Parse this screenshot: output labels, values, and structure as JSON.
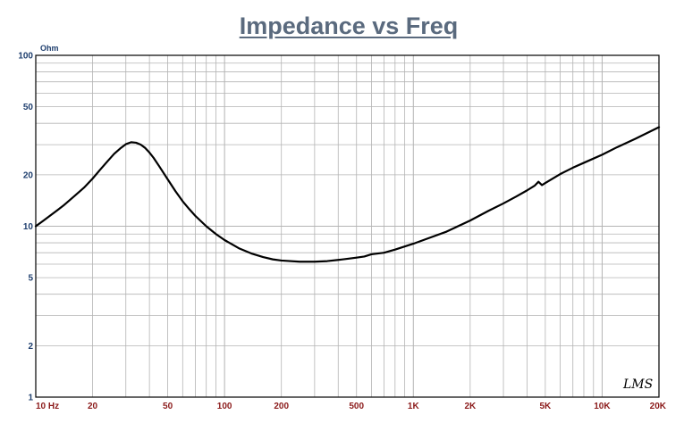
{
  "chart_data": {
    "type": "line",
    "title": "Impedance vs Freq",
    "ylabel": "Ohm",
    "xlabel": "",
    "x_scale": "log",
    "y_scale": "log",
    "xlim": [
      10,
      20000
    ],
    "ylim": [
      1,
      100
    ],
    "x_tick_labels": [
      {
        "value": 10,
        "label": "10 Hz"
      },
      {
        "value": 20,
        "label": "20"
      },
      {
        "value": 50,
        "label": "50"
      },
      {
        "value": 100,
        "label": "100"
      },
      {
        "value": 200,
        "label": "200"
      },
      {
        "value": 500,
        "label": "500"
      },
      {
        "value": 1000,
        "label": "1K"
      },
      {
        "value": 2000,
        "label": "2K"
      },
      {
        "value": 5000,
        "label": "5K"
      },
      {
        "value": 10000,
        "label": "10K"
      },
      {
        "value": 20000,
        "label": "20K"
      }
    ],
    "y_tick_labels": [
      {
        "value": 100,
        "label": "100"
      },
      {
        "value": 50,
        "label": "50"
      },
      {
        "value": 20,
        "label": "20"
      },
      {
        "value": 10,
        "label": "10"
      },
      {
        "value": 5,
        "label": "5"
      },
      {
        "value": 2,
        "label": "2"
      },
      {
        "value": 1,
        "label": "1"
      }
    ],
    "grid": true,
    "legend": "none",
    "series": [
      {
        "x": [
          10,
          11,
          12,
          13,
          14,
          15,
          16,
          18,
          20,
          22,
          24,
          26,
          28,
          30,
          32,
          34,
          36,
          38,
          40,
          42,
          45,
          50,
          55,
          60,
          65,
          70,
          80,
          90,
          100,
          120,
          140,
          160,
          180,
          200,
          250,
          300,
          350,
          400,
          450,
          500,
          550,
          600,
          700,
          800,
          1000,
          1200,
          1500,
          2000,
          2500,
          3000,
          3500,
          4000,
          4400,
          4600,
          4800,
          5000,
          6000,
          7000,
          8000,
          10000,
          12000,
          15000,
          20000
        ],
        "y": [
          10,
          10.8,
          11.6,
          12.4,
          13.2,
          14.1,
          15,
          16.8,
          19,
          21.5,
          24,
          26.5,
          28.5,
          30.2,
          31,
          30.8,
          30,
          28.7,
          27,
          25.2,
          22.5,
          18.8,
          16,
          14,
          12.6,
          11.5,
          10,
          9,
          8.3,
          7.4,
          6.9,
          6.6,
          6.4,
          6.3,
          6.2,
          6.2,
          6.25,
          6.35,
          6.45,
          6.55,
          6.65,
          6.85,
          7,
          7.3,
          7.9,
          8.5,
          9.3,
          10.8,
          12.3,
          13.6,
          14.9,
          16.2,
          17.3,
          18.2,
          17.4,
          17.9,
          20.2,
          22,
          23.5,
          26.2,
          29,
          32.5,
          38
        ]
      }
    ],
    "watermark": "LMS",
    "colors": {
      "title": "#5a6a7e",
      "y_ticks": "#1f3f6e",
      "x_ticks": "#8b1a1a",
      "grid": "#b4b4b4",
      "curve": "#000000",
      "frame": "#000000"
    }
  }
}
